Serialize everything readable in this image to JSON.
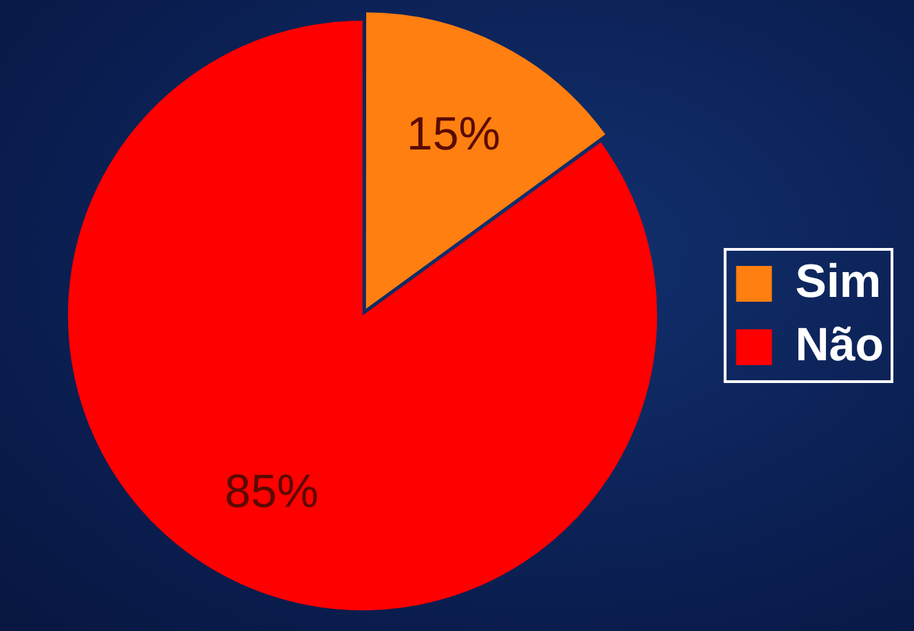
{
  "chart_data": {
    "type": "pie",
    "categories": [
      "Sim",
      "Não"
    ],
    "values": [
      15,
      85
    ],
    "colors": [
      "#ff7f10",
      "#ff0000"
    ],
    "value_labels": [
      "15%",
      "85%"
    ],
    "legend": "right"
  }
}
